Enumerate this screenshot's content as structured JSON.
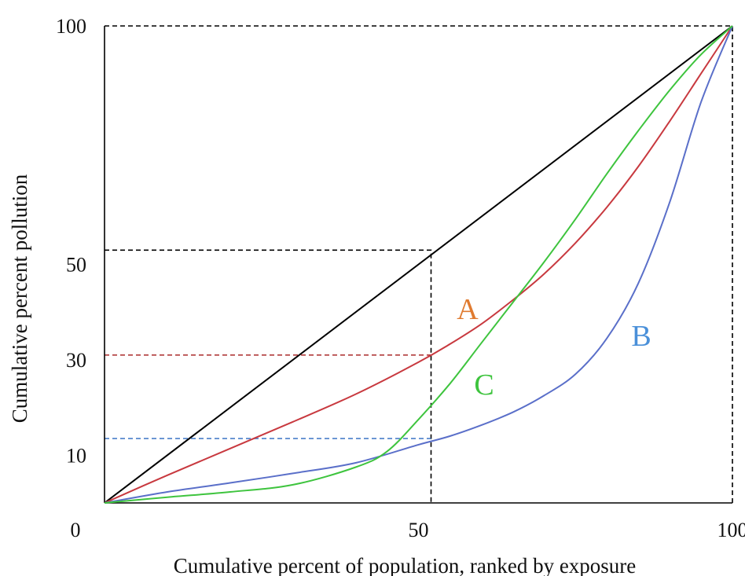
{
  "chart_data": {
    "type": "line",
    "xlabel": "Cumulative percent of population, ranked by exposure",
    "ylabel": "Cumulative percent pollution",
    "xlim": [
      0,
      100
    ],
    "ylim": [
      0,
      100
    ],
    "x_ticks": [
      "0",
      "50",
      "100"
    ],
    "y_ticks": [
      "10",
      "30",
      "50",
      "100"
    ],
    "grid": false,
    "series": [
      {
        "name": "",
        "color": "#000000",
        "x": [
          0,
          100
        ],
        "y": [
          0,
          100
        ]
      },
      {
        "name": "A",
        "color": "#c8393f",
        "label_color": "#e07b30",
        "x": [
          0,
          10,
          20,
          30,
          40,
          50,
          55,
          60,
          65,
          70,
          75,
          80,
          85,
          90,
          95,
          100
        ],
        "y": [
          0,
          5.8,
          11.4,
          17.0,
          22.8,
          29.5,
          33.3,
          37.5,
          42.5,
          48.0,
          54.5,
          62.0,
          70.5,
          80.0,
          90.0,
          100
        ]
      },
      {
        "name": "B",
        "color": "#5a6fc9",
        "label_color": "#4a90d9",
        "x": [
          0,
          10,
          20,
          30,
          40,
          50,
          55,
          60,
          65,
          70,
          75,
          80,
          85,
          90,
          95,
          100
        ],
        "y": [
          0,
          2.3,
          4.2,
          6.2,
          8.4,
          12.2,
          14.0,
          16.3,
          19.0,
          22.5,
          27.0,
          34.5,
          46.0,
          63.0,
          84.0,
          100
        ]
      },
      {
        "name": "C",
        "color": "#3ec43e",
        "label_color": "#3ec43e",
        "x": [
          0,
          10,
          20,
          30,
          40,
          45,
          50,
          55,
          60,
          65,
          70,
          75,
          80,
          85,
          90,
          95,
          100
        ],
        "y": [
          0,
          1.2,
          2.3,
          3.8,
          7.5,
          10.8,
          17.5,
          25.0,
          33.5,
          42.0,
          50.5,
          59.5,
          69.0,
          78.0,
          86.5,
          94.0,
          100
        ]
      }
    ],
    "reference_lines": [
      {
        "color": "#000000",
        "x": [
          0,
          100,
          100
        ],
        "y": [
          100,
          100,
          0
        ]
      },
      {
        "color": "#000000",
        "x": [
          0,
          52,
          52
        ],
        "y": [
          53,
          53,
          0
        ]
      },
      {
        "color": "#b03a3a",
        "x": [
          0,
          52
        ],
        "y": [
          31,
          31
        ]
      },
      {
        "color": "#4a7fc9",
        "x": [
          0,
          52
        ],
        "y": [
          13.5,
          13.5
        ]
      }
    ],
    "annotations": [
      "A",
      "B",
      "C"
    ]
  }
}
